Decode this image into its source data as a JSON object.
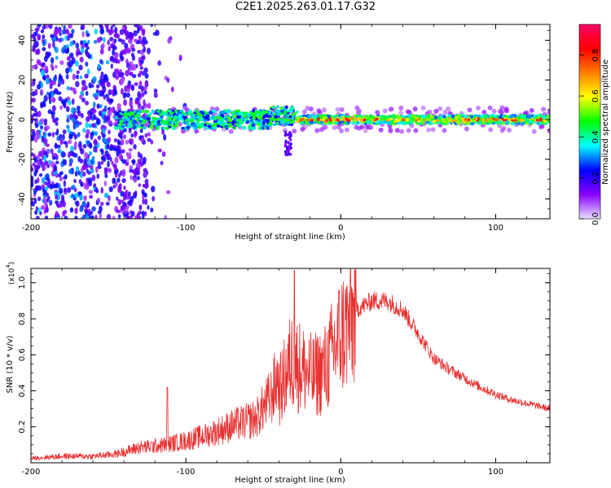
{
  "title": "C2E1.2025.263.01.17.G32",
  "chart_data": [
    {
      "type": "heatmap",
      "title": "C2E1.2025.263.01.17.G32",
      "xlabel": "Height of straight line (km)",
      "ylabel": "Frequency (Hz)",
      "xlim": [
        -200,
        135
      ],
      "ylim": [
        -50,
        48
      ],
      "xticks": [
        -200,
        -100,
        0,
        100
      ],
      "xtick_labels": [
        "-200",
        "-100",
        "0",
        "100"
      ],
      "yticks": [
        -40,
        -20,
        0,
        20,
        40
      ],
      "ytick_labels": [
        "-40",
        "-20",
        "0",
        "20",
        "40"
      ],
      "colorbar": {
        "label": "Normalized spectral amplitude",
        "range": [
          0.0,
          0.95
        ],
        "ticks": [
          0.0,
          0.2,
          0.4,
          0.6,
          0.8
        ],
        "tick_labels": [
          "0.0",
          "0.2",
          "0.4",
          "0.6",
          "0.8"
        ],
        "colormap": [
          "#e8e0ff",
          "#8b00ff",
          "#0000ff",
          "#00ffff",
          "#00ff00",
          "#ffff00",
          "#ff8000",
          "#ff0000",
          "#ff0066"
        ]
      },
      "description_values": {
        "noise_region_x": [
          -200,
          -125
        ],
        "band_center_hz": 0,
        "band_halfwidth_hz": [
          -5,
          5
        ],
        "strong_signal_x": [
          -30,
          135
        ]
      }
    },
    {
      "type": "line",
      "xlabel": "Height of straight line (km)",
      "ylabel": "SNR (10 * v/v)",
      "scale_label": "(x10",
      "scale_exponent": "4",
      "xlim": [
        -200,
        135
      ],
      "ylim": [
        0.0,
        1.08
      ],
      "xticks": [
        -200,
        -100,
        0,
        100
      ],
      "xtick_labels": [
        "-200",
        "-100",
        "0",
        "100"
      ],
      "yticks": [
        0.2,
        0.4,
        0.6,
        0.8,
        1.0
      ],
      "ytick_labels": [
        "0.2",
        "0.4",
        "0.6",
        "0.8",
        "1.0"
      ],
      "line_color": "#e83030",
      "series": [
        {
          "name": "SNR",
          "x": [
            -200,
            -180,
            -160,
            -145,
            -130,
            -115,
            -100,
            -85,
            -70,
            -55,
            -45,
            -38,
            -32,
            -25,
            -18,
            -10,
            -5,
            0,
            10,
            20,
            30,
            40,
            50,
            60,
            70,
            80,
            90,
            100,
            110,
            120,
            135
          ],
          "y": [
            0.02,
            0.03,
            0.03,
            0.04,
            0.07,
            0.08,
            0.1,
            0.13,
            0.17,
            0.2,
            0.3,
            0.45,
            0.6,
            0.55,
            0.5,
            0.55,
            0.65,
            0.75,
            0.85,
            0.9,
            0.9,
            0.85,
            0.72,
            0.58,
            0.52,
            0.47,
            0.42,
            0.38,
            0.35,
            0.33,
            0.3
          ]
        }
      ],
      "spikes": [
        {
          "x": -112,
          "y": 0.42
        },
        {
          "x": -30,
          "y": 1.07
        },
        {
          "x": 9,
          "y": 1.07
        }
      ]
    }
  ]
}
